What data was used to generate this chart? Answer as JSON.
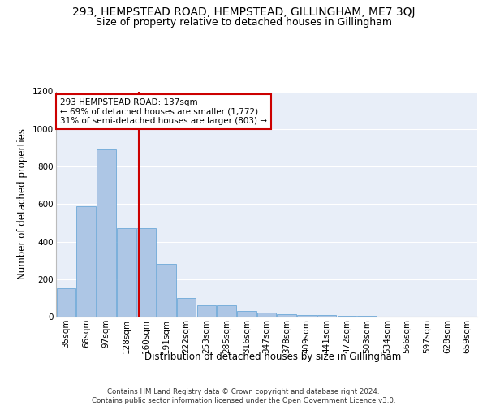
{
  "title": "293, HEMPSTEAD ROAD, HEMPSTEAD, GILLINGHAM, ME7 3QJ",
  "subtitle": "Size of property relative to detached houses in Gillingham",
  "xlabel": "Distribution of detached houses by size in Gillingham",
  "ylabel": "Number of detached properties",
  "bin_labels": [
    "35sqm",
    "66sqm",
    "97sqm",
    "128sqm",
    "160sqm",
    "191sqm",
    "222sqm",
    "253sqm",
    "285sqm",
    "316sqm",
    "347sqm",
    "378sqm",
    "409sqm",
    "441sqm",
    "472sqm",
    "503sqm",
    "534sqm",
    "566sqm",
    "597sqm",
    "628sqm",
    "659sqm"
  ],
  "bar_heights": [
    150,
    590,
    890,
    470,
    470,
    280,
    100,
    60,
    60,
    30,
    20,
    15,
    10,
    10,
    5,
    3,
    2,
    1,
    1,
    0,
    0
  ],
  "bar_color": "#adc6e5",
  "bar_edgecolor": "#5a9fd4",
  "vline_x": 3.62,
  "vline_color": "#cc0000",
  "annotation_text": "293 HEMPSTEAD ROAD: 137sqm\n← 69% of detached houses are smaller (1,772)\n31% of semi-detached houses are larger (803) →",
  "annotation_box_color": "#ffffff",
  "annotation_box_edgecolor": "#cc0000",
  "ylim": [
    0,
    1200
  ],
  "yticks": [
    0,
    200,
    400,
    600,
    800,
    1000,
    1200
  ],
  "footer_text": "Contains HM Land Registry data © Crown copyright and database right 2024.\nContains public sector information licensed under the Open Government Licence v3.0.",
  "background_color": "#e8eef8",
  "grid_color": "#ffffff",
  "fig_background": "#ffffff",
  "title_fontsize": 10,
  "subtitle_fontsize": 9,
  "label_fontsize": 8.5,
  "tick_fontsize": 7.5,
  "footer_fontsize": 6.2
}
